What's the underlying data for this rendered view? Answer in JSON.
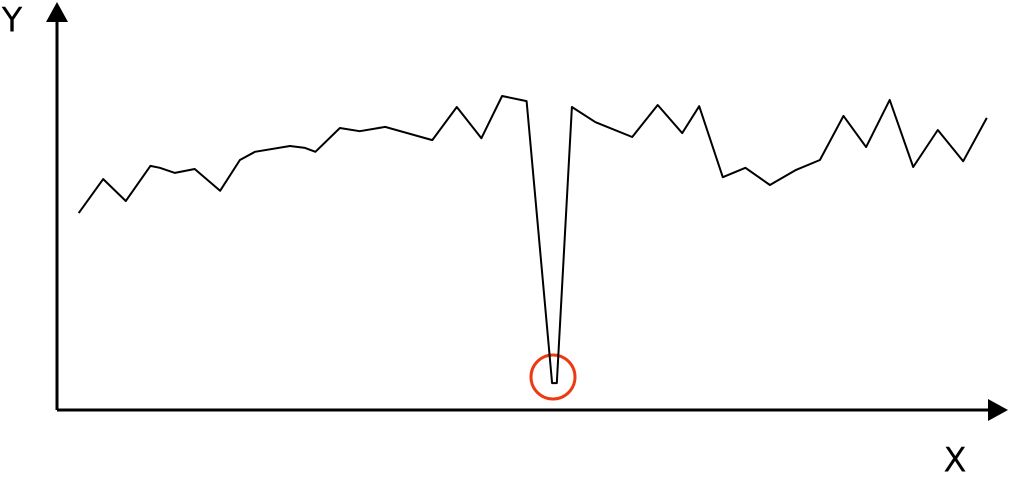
{
  "chart_data": {
    "type": "line",
    "x_label": "X",
    "y_label": "Y",
    "xlim": [
      0,
      100
    ],
    "ylim": [
      0,
      100
    ],
    "color": "#000000",
    "x": [
      2.3,
      4.9,
      7.3,
      9.9,
      10.9,
      12.5,
      14.6,
      17.3,
      19.4,
      21.0,
      24.7,
      26.3,
      27.4,
      30.0,
      32.1,
      34.8,
      39.8,
      42.4,
      45.0,
      47.2,
      49.8,
      52.5,
      53.0,
      54.6,
      57.1,
      61.0,
      63.7,
      66.3,
      68.1,
      70.6,
      73.0,
      75.6,
      78.3,
      80.9,
      83.4,
      85.8,
      88.3,
      90.8,
      93.4,
      96.1,
      98.6
    ],
    "values": [
      50.5,
      59.2,
      53.6,
      62.6,
      62.1,
      60.8,
      61.8,
      56.2,
      64.1,
      66.2,
      67.7,
      67.2,
      66.2,
      72.3,
      71.5,
      72.6,
      69.2,
      77.7,
      69.7,
      80.5,
      79.2,
      6.9,
      6.9,
      77.7,
      73.8,
      70.0,
      78.2,
      71.0,
      77.9,
      59.7,
      62.1,
      57.7,
      61.5,
      64.1,
      75.4,
      67.4,
      79.5,
      62.3,
      71.8,
      63.8,
      74.9
    ]
  }
}
